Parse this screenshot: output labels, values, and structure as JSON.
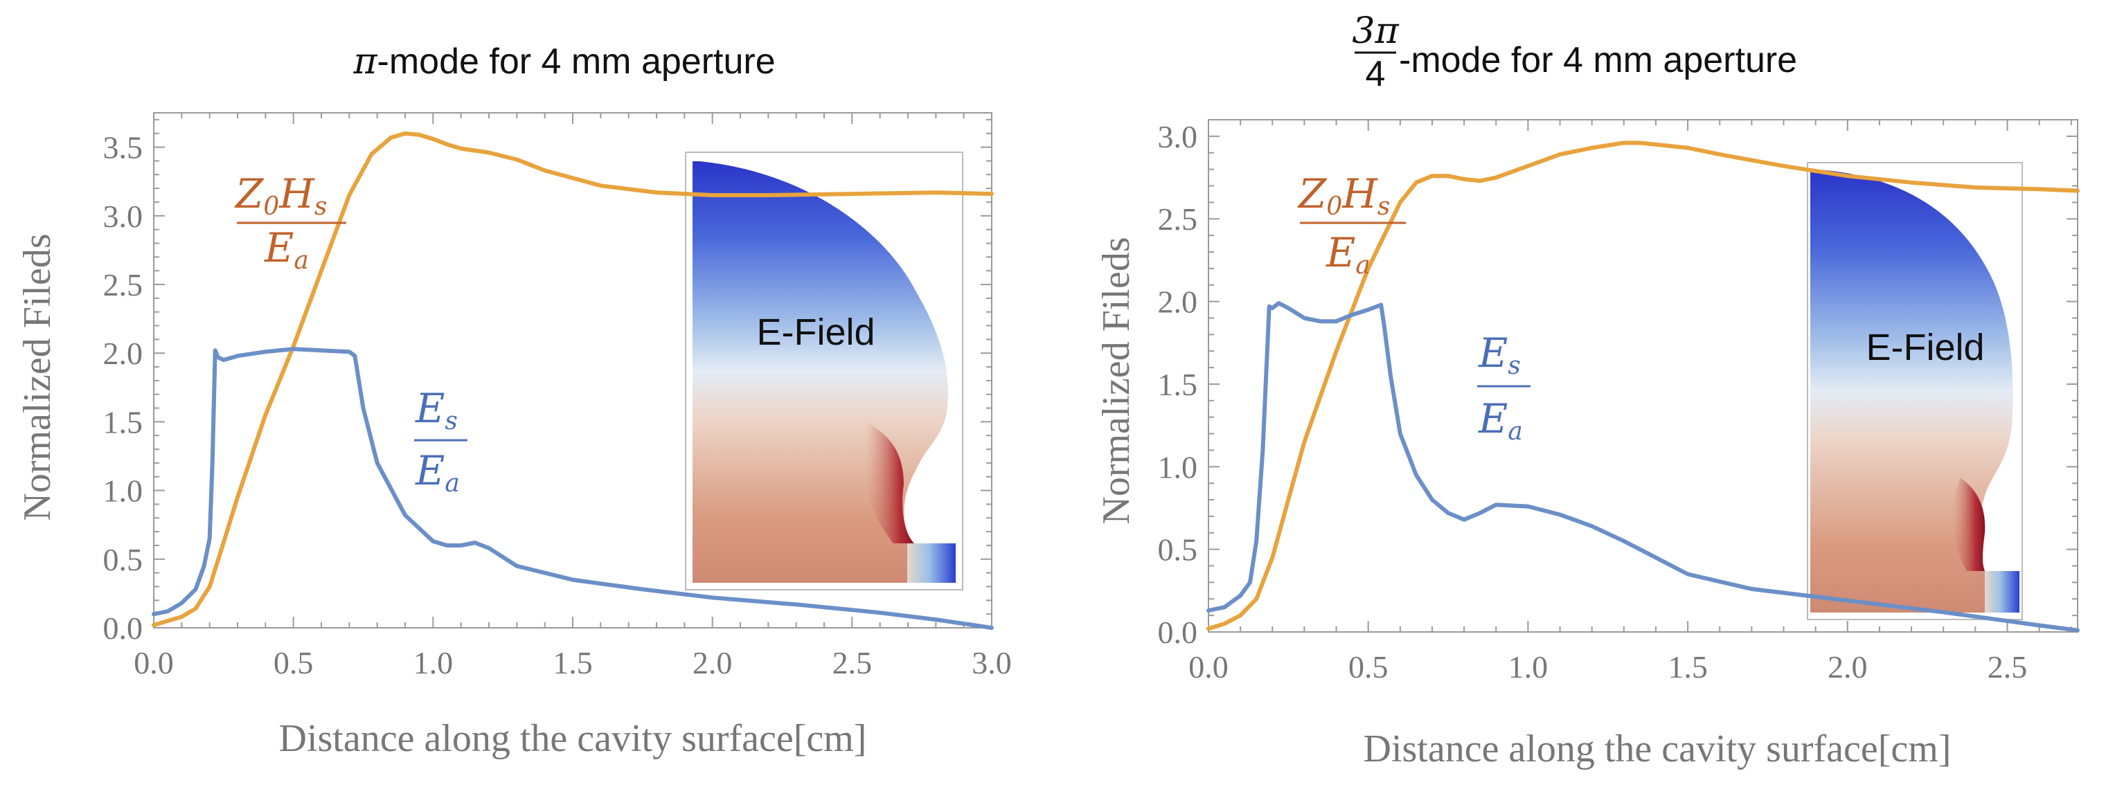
{
  "chart_data": [
    {
      "type": "line",
      "title_symbol": "π",
      "title_rest": "-mode for 4 mm aperture",
      "xlabel": "Distance along the cavity surface[cm]",
      "ylabel": "Normalized Fileds",
      "xlim": [
        0,
        3.0
      ],
      "ylim": [
        0,
        3.75
      ],
      "xticks": [
        "0.0",
        "0.5",
        "1.0",
        "1.5",
        "2.0",
        "2.5",
        "3.0"
      ],
      "yticks": [
        "0.0",
        "0.5",
        "1.0",
        "1.5",
        "2.0",
        "2.5",
        "3.0",
        "3.5"
      ],
      "inset_label": "E-Field",
      "series": [
        {
          "name": "Z0Hs/Ea",
          "color": "#E8A33D",
          "label_num": "Z",
          "label_num_sub": "0",
          "label_num2": "H",
          "label_num2_sub": "s",
          "label_den": "E",
          "label_den_sub": "a",
          "x": [
            0.0,
            0.05,
            0.1,
            0.15,
            0.2,
            0.25,
            0.3,
            0.4,
            0.5,
            0.6,
            0.7,
            0.78,
            0.85,
            0.9,
            0.95,
            1.0,
            1.05,
            1.1,
            1.2,
            1.3,
            1.4,
            1.6,
            1.8,
            2.0,
            2.2,
            2.5,
            2.8,
            3.0
          ],
          "y": [
            0.02,
            0.05,
            0.08,
            0.14,
            0.3,
            0.62,
            0.95,
            1.55,
            2.05,
            2.6,
            3.15,
            3.45,
            3.57,
            3.6,
            3.59,
            3.56,
            3.52,
            3.49,
            3.46,
            3.41,
            3.33,
            3.22,
            3.17,
            3.15,
            3.15,
            3.16,
            3.17,
            3.16
          ]
        },
        {
          "name": "Es/Ea",
          "color": "#6B8FC7",
          "label_num": "E",
          "label_num_sub": "s",
          "label_den": "E",
          "label_den_sub": "a",
          "x": [
            0.0,
            0.05,
            0.1,
            0.15,
            0.18,
            0.2,
            0.21,
            0.22,
            0.23,
            0.25,
            0.3,
            0.4,
            0.5,
            0.6,
            0.7,
            0.72,
            0.75,
            0.8,
            0.9,
            1.0,
            1.05,
            1.1,
            1.15,
            1.2,
            1.3,
            1.5,
            1.75,
            2.0,
            2.3,
            2.6,
            2.8,
            3.0
          ],
          "y": [
            0.1,
            0.12,
            0.18,
            0.28,
            0.45,
            0.65,
            1.2,
            2.02,
            1.97,
            1.95,
            1.98,
            2.01,
            2.03,
            2.02,
            2.01,
            1.98,
            1.6,
            1.2,
            0.82,
            0.63,
            0.6,
            0.6,
            0.62,
            0.58,
            0.45,
            0.35,
            0.28,
            0.22,
            0.17,
            0.11,
            0.06,
            0.0
          ]
        }
      ]
    },
    {
      "type": "line",
      "title_frac_num": "3π",
      "title_frac_den": "4",
      "title_rest": "-mode for 4 mm aperture",
      "xlabel": "Distance along the cavity surface[cm]",
      "ylabel": "Normalized Fileds",
      "xlim": [
        0,
        2.72
      ],
      "ylim": [
        0,
        3.1
      ],
      "xticks": [
        "0.0",
        "0.5",
        "1.0",
        "1.5",
        "2.0",
        "2.5"
      ],
      "yticks": [
        "0.0",
        "0.5",
        "1.0",
        "1.5",
        "2.0",
        "2.5",
        "3.0"
      ],
      "inset_label": "E-Field",
      "series": [
        {
          "name": "Z0Hs/Ea",
          "color": "#E8A33D",
          "label_num": "Z",
          "label_num_sub": "0",
          "label_num2": "H",
          "label_num2_sub": "s",
          "label_den": "E",
          "label_den_sub": "a",
          "x": [
            0.0,
            0.05,
            0.1,
            0.15,
            0.2,
            0.25,
            0.3,
            0.4,
            0.5,
            0.6,
            0.65,
            0.7,
            0.75,
            0.8,
            0.85,
            0.9,
            1.0,
            1.1,
            1.2,
            1.3,
            1.35,
            1.4,
            1.5,
            1.6,
            1.8,
            2.0,
            2.2,
            2.4,
            2.6,
            2.72
          ],
          "y": [
            0.02,
            0.05,
            0.1,
            0.2,
            0.45,
            0.8,
            1.15,
            1.7,
            2.2,
            2.6,
            2.72,
            2.76,
            2.76,
            2.74,
            2.73,
            2.75,
            2.82,
            2.89,
            2.93,
            2.96,
            2.96,
            2.95,
            2.93,
            2.89,
            2.82,
            2.76,
            2.72,
            2.69,
            2.68,
            2.67
          ]
        },
        {
          "name": "Es/Ea",
          "color": "#6B8FC7",
          "label_num": "E",
          "label_num_sub": "s",
          "label_den": "E",
          "label_den_sub": "a",
          "x": [
            0.0,
            0.05,
            0.1,
            0.13,
            0.15,
            0.17,
            0.19,
            0.2,
            0.22,
            0.25,
            0.3,
            0.35,
            0.4,
            0.45,
            0.5,
            0.54,
            0.55,
            0.57,
            0.6,
            0.65,
            0.7,
            0.75,
            0.8,
            0.85,
            0.9,
            1.0,
            1.1,
            1.2,
            1.3,
            1.4,
            1.5,
            1.7,
            2.0,
            2.3,
            2.6,
            2.72
          ],
          "y": [
            0.13,
            0.15,
            0.22,
            0.3,
            0.55,
            1.1,
            1.97,
            1.96,
            1.99,
            1.96,
            1.9,
            1.88,
            1.88,
            1.92,
            1.95,
            1.98,
            1.85,
            1.55,
            1.2,
            0.95,
            0.8,
            0.72,
            0.68,
            0.72,
            0.77,
            0.76,
            0.71,
            0.64,
            0.55,
            0.45,
            0.35,
            0.26,
            0.19,
            0.12,
            0.04,
            0.01
          ]
        }
      ]
    }
  ]
}
